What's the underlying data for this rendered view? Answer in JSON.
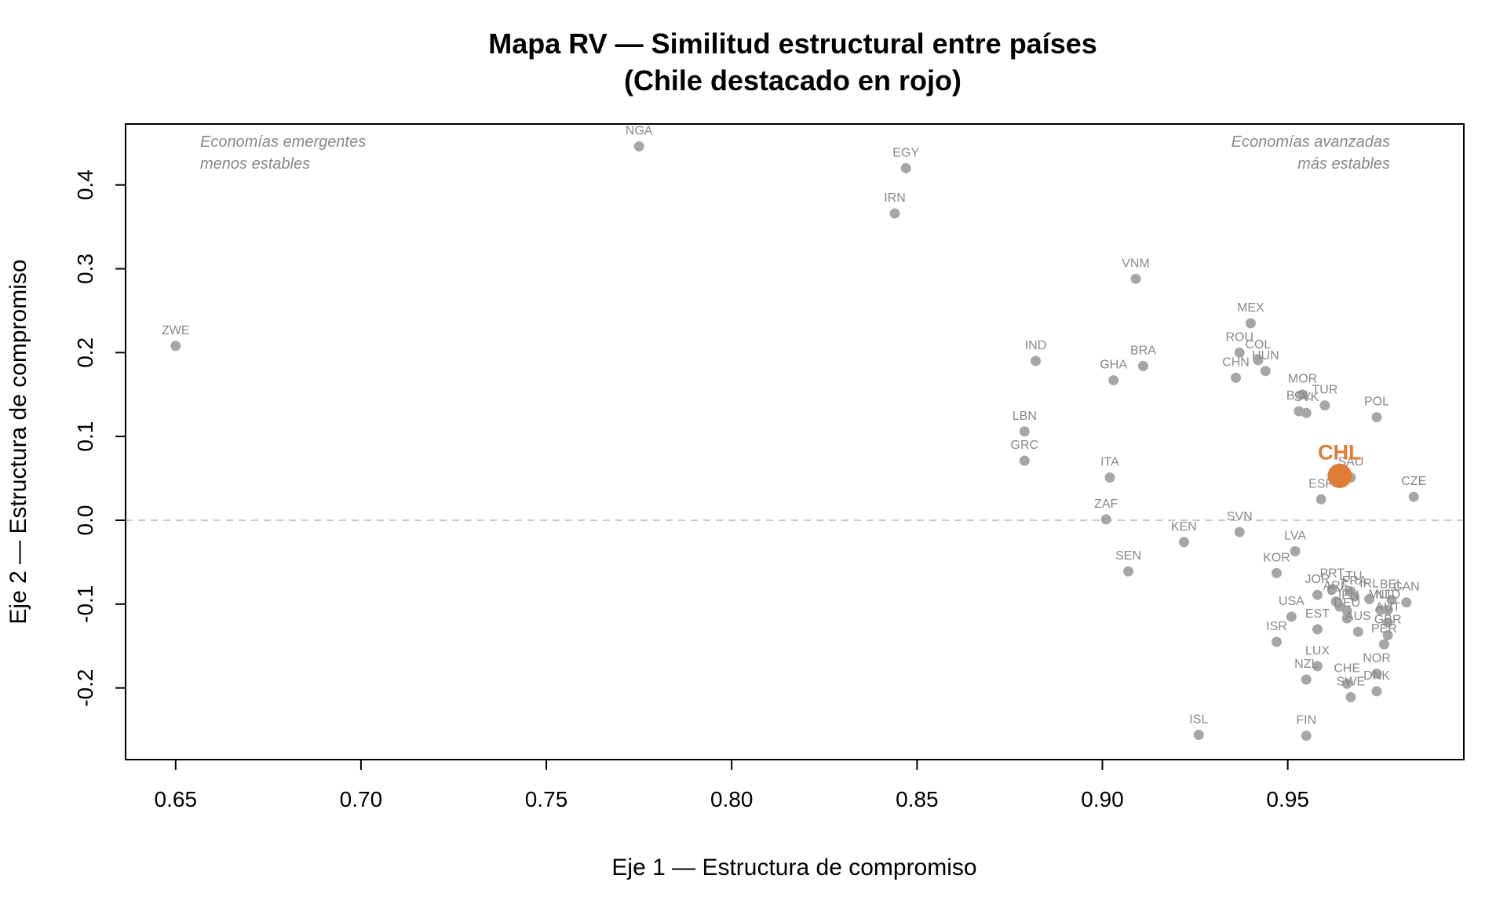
{
  "chart_data": {
    "type": "scatter",
    "title_line1": "Mapa RV — Similitud estructural entre países",
    "title_line2": "(Chile destacado en rojo)",
    "xlabel": "Eje 1 — Estructura de compromiso",
    "ylabel": "Eje 2 — Estructura de compromiso",
    "xlim": [
      0.6365,
      0.9975
    ],
    "ylim": [
      -0.2855,
      0.4727
    ],
    "x_ticks": [
      0.65,
      0.7,
      0.75,
      0.8,
      0.85,
      0.9,
      0.95
    ],
    "x_tick_labels": [
      "0.65",
      "0.70",
      "0.75",
      "0.80",
      "0.85",
      "0.90",
      "0.95"
    ],
    "y_ticks": [
      -0.2,
      -0.1,
      0.0,
      0.1,
      0.2,
      0.3,
      0.4
    ],
    "y_tick_labels": [
      "-0.2",
      "-0.1",
      "0.0",
      "0.1",
      "0.2",
      "0.3",
      "0.4"
    ],
    "reference_line_y": 0.0,
    "annotations": {
      "top_left": [
        "Economías emergentes",
        "menos estables"
      ],
      "top_right": [
        "Economías avanzadas",
        "más estables"
      ]
    },
    "colors": {
      "point": "#a6a6a6",
      "point_label": "#888888",
      "highlight": "#e07b39",
      "reference_line": "#c8c8c8",
      "axis": "#000000"
    },
    "highlight": {
      "label": "CHL",
      "x": 0.964,
      "y": 0.053
    },
    "points": [
      {
        "label": "ZWE",
        "x": 0.65,
        "y": 0.208
      },
      {
        "label": "NGA",
        "x": 0.775,
        "y": 0.446
      },
      {
        "label": "EGY",
        "x": 0.847,
        "y": 0.42
      },
      {
        "label": "IRN",
        "x": 0.844,
        "y": 0.366
      },
      {
        "label": "VNM",
        "x": 0.909,
        "y": 0.288
      },
      {
        "label": "IND",
        "x": 0.882,
        "y": 0.19
      },
      {
        "label": "BRA",
        "x": 0.911,
        "y": 0.184
      },
      {
        "label": "GHA",
        "x": 0.903,
        "y": 0.167
      },
      {
        "label": "LBN",
        "x": 0.879,
        "y": 0.106
      },
      {
        "label": "GRC",
        "x": 0.879,
        "y": 0.071
      },
      {
        "label": "ITA",
        "x": 0.902,
        "y": 0.051
      },
      {
        "label": "ZAF",
        "x": 0.901,
        "y": 0.001
      },
      {
        "label": "SEN",
        "x": 0.907,
        "y": -0.061
      },
      {
        "label": "KEN",
        "x": 0.922,
        "y": -0.026
      },
      {
        "label": "SVN",
        "x": 0.937,
        "y": -0.014
      },
      {
        "label": "MEX",
        "x": 0.94,
        "y": 0.235
      },
      {
        "label": "ROU",
        "x": 0.937,
        "y": 0.2
      },
      {
        "label": "COL",
        "x": 0.942,
        "y": 0.191
      },
      {
        "label": "HUN",
        "x": 0.944,
        "y": 0.178
      },
      {
        "label": "CHN",
        "x": 0.936,
        "y": 0.17
      },
      {
        "label": "MOR",
        "x": 0.954,
        "y": 0.15
      },
      {
        "label": "TUR",
        "x": 0.96,
        "y": 0.137
      },
      {
        "label": "BOL",
        "x": 0.953,
        "y": 0.13
      },
      {
        "label": "SVK",
        "x": 0.955,
        "y": 0.128
      },
      {
        "label": "POL",
        "x": 0.974,
        "y": 0.123
      },
      {
        "label": "SAU",
        "x": 0.967,
        "y": 0.051
      },
      {
        "label": "ESP",
        "x": 0.959,
        "y": 0.025
      },
      {
        "label": "CZE",
        "x": 0.984,
        "y": 0.028
      },
      {
        "label": "LVA",
        "x": 0.952,
        "y": -0.037
      },
      {
        "label": "KOR",
        "x": 0.947,
        "y": -0.063
      },
      {
        "label": "PRT",
        "x": 0.962,
        "y": -0.082
      },
      {
        "label": "LTU",
        "x": 0.967,
        "y": -0.085
      },
      {
        "label": "JOR",
        "x": 0.958,
        "y": -0.089
      },
      {
        "label": "ARE",
        "x": 0.963,
        "y": -0.097
      },
      {
        "label": "FRA",
        "x": 0.968,
        "y": -0.091
      },
      {
        "label": "IRL",
        "x": 0.972,
        "y": -0.094
      },
      {
        "label": "BEL",
        "x": 0.978,
        "y": -0.095
      },
      {
        "label": "CAN",
        "x": 0.982,
        "y": -0.098
      },
      {
        "label": "CYP",
        "x": 0.964,
        "y": -0.103
      },
      {
        "label": "JPN",
        "x": 0.966,
        "y": -0.108
      },
      {
        "label": "MLT",
        "x": 0.975,
        "y": -0.107
      },
      {
        "label": "NLD",
        "x": 0.977,
        "y": -0.107
      },
      {
        "label": "USA",
        "x": 0.951,
        "y": -0.115
      },
      {
        "label": "DEU",
        "x": 0.966,
        "y": -0.117
      },
      {
        "label": "EST",
        "x": 0.958,
        "y": -0.13
      },
      {
        "label": "AUT",
        "x": 0.977,
        "y": -0.122
      },
      {
        "label": "GBR",
        "x": 0.977,
        "y": -0.137
      },
      {
        "label": "AUS",
        "x": 0.969,
        "y": -0.133
      },
      {
        "label": "ISR",
        "x": 0.947,
        "y": -0.145
      },
      {
        "label": "PER",
        "x": 0.976,
        "y": -0.148
      },
      {
        "label": "LUX",
        "x": 0.958,
        "y": -0.174
      },
      {
        "label": "NOR",
        "x": 0.974,
        "y": -0.183
      },
      {
        "label": "NZL",
        "x": 0.955,
        "y": -0.19
      },
      {
        "label": "CHE",
        "x": 0.966,
        "y": -0.195
      },
      {
        "label": "DNK",
        "x": 0.974,
        "y": -0.204
      },
      {
        "label": "SWE",
        "x": 0.967,
        "y": -0.211
      },
      {
        "label": "ISL",
        "x": 0.926,
        "y": -0.256
      },
      {
        "label": "FIN",
        "x": 0.955,
        "y": -0.257
      }
    ]
  }
}
